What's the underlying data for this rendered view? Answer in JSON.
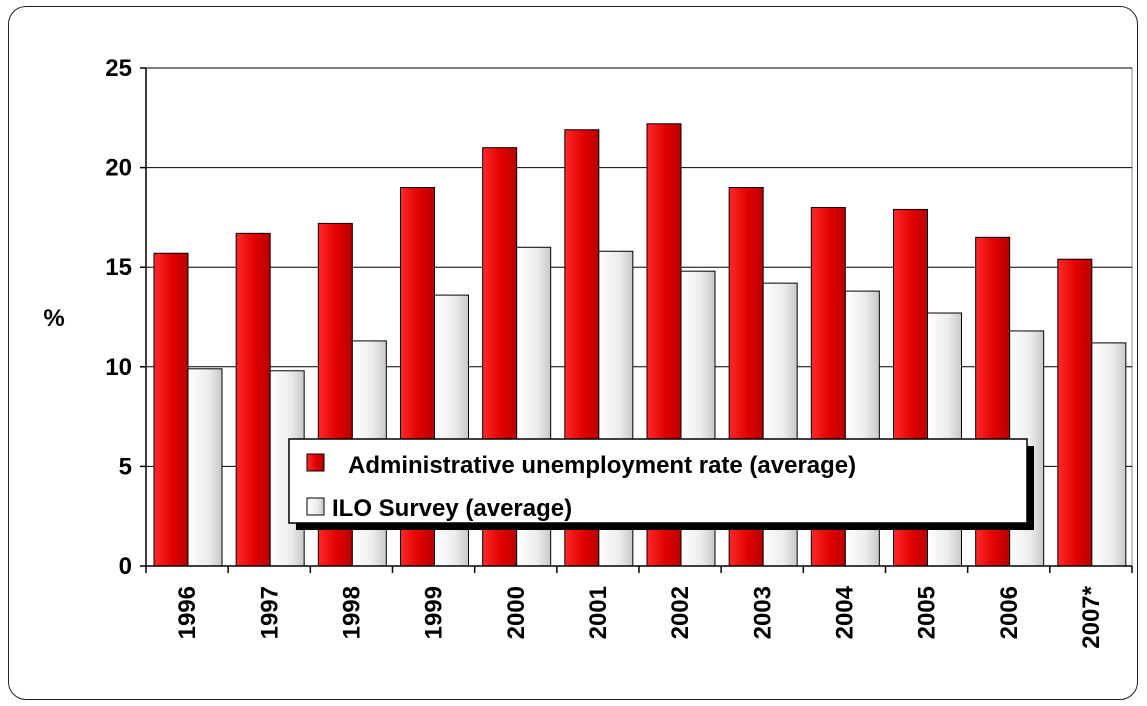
{
  "chart_data": {
    "type": "bar",
    "title": "",
    "xlabel": "",
    "ylabel": "%",
    "ylim": [
      0,
      25
    ],
    "yticks": [
      0,
      5,
      10,
      15,
      20,
      25
    ],
    "grid": "horizontal",
    "legend_position": "bottom-center",
    "categories": [
      "1996",
      "1997",
      "1998",
      "1999",
      "2000",
      "2001",
      "2002",
      "2003",
      "2004",
      "2005",
      "2006",
      "2007*"
    ],
    "series": [
      {
        "name": "Administrative unemployment rate (average)",
        "color": "#ee0000",
        "values": [
          15.7,
          16.7,
          17.2,
          19.0,
          21.0,
          21.9,
          22.2,
          19.0,
          18.0,
          17.9,
          16.5,
          15.4
        ]
      },
      {
        "name": "ILO Survey (average)",
        "color": "#f2f2f2",
        "values": [
          9.9,
          9.8,
          11.3,
          13.6,
          16.0,
          15.8,
          14.8,
          14.2,
          13.8,
          12.7,
          11.8,
          11.2
        ]
      }
    ]
  }
}
